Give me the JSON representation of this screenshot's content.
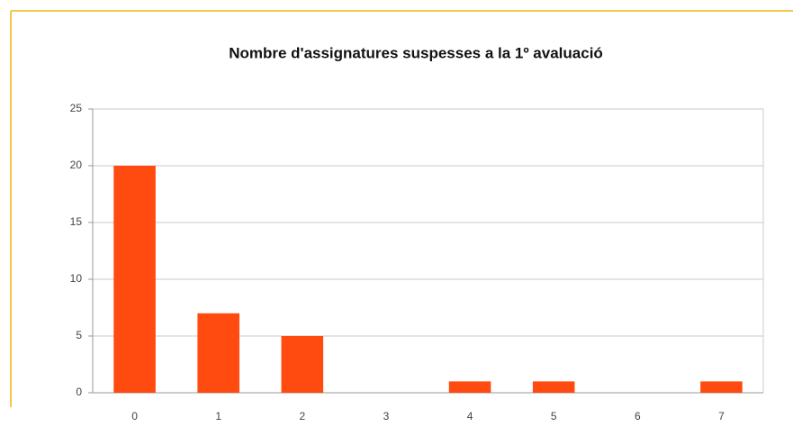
{
  "chart_data": {
    "type": "bar",
    "title": "Nombre d'assignatures suspesses a la 1º avaluació",
    "categories": [
      "0",
      "1",
      "2",
      "3",
      "4",
      "5",
      "6",
      "7"
    ],
    "values": [
      20,
      7,
      5,
      0,
      1,
      1,
      0,
      1
    ],
    "color": "#ff4a10",
    "ylim": [
      0,
      25
    ],
    "yticks": [
      0,
      5,
      10,
      15,
      20,
      25
    ],
    "grid": true
  }
}
